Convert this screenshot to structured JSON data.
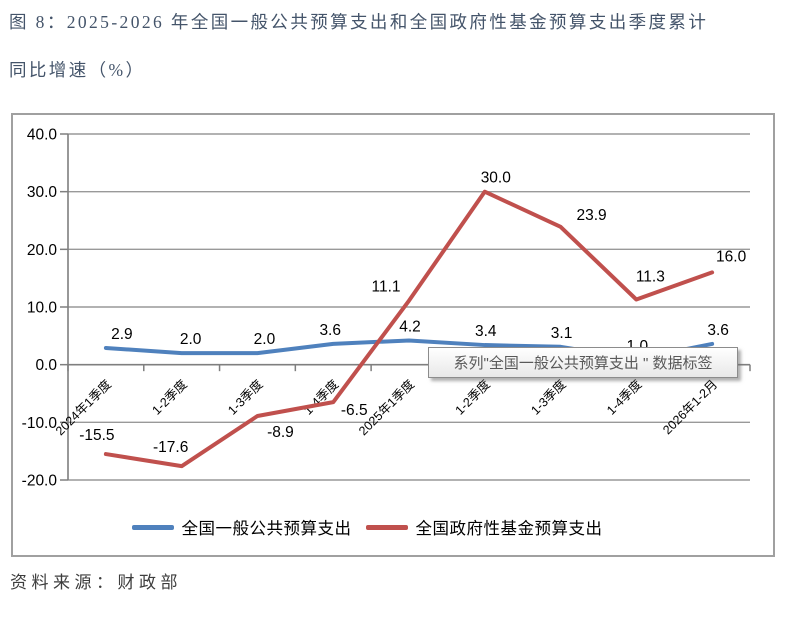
{
  "title": {
    "line1": "图 8：2025-2026 年全国一般公共预算支出和全国政府性基金预算支出季度累计",
    "line2": "同比增速（%）"
  },
  "tooltip": {
    "text": "系列\"全国一般公共预算支出 \" 数据标签"
  },
  "source_note": "资料来源：财政部",
  "colors": {
    "series_blue": "#4F81BD",
    "series_red": "#C0504D",
    "gridline": "#999999",
    "axis": "#7f7f7f",
    "title_text": "#44546A"
  },
  "chart_data": {
    "type": "line",
    "categories": [
      "2024年1季度",
      "1-2季度",
      "1-3季度",
      "1-4季度",
      "2025年1季度",
      "1-2季度",
      "1-3季度",
      "1-4季度",
      "2026年1-2月"
    ],
    "series": [
      {
        "name": "全国一般公共预算支出",
        "color": "#4F81BD",
        "values": [
          2.9,
          2.0,
          2.0,
          3.6,
          4.2,
          3.4,
          3.1,
          1.0,
          3.6
        ]
      },
      {
        "name": "全国政府性基金预算支出",
        "color": "#C0504D",
        "values": [
          -15.5,
          -17.6,
          -8.9,
          -6.5,
          11.1,
          30.0,
          23.9,
          11.3,
          16.0
        ]
      }
    ],
    "ylim": [
      -20,
      40
    ],
    "ytick_step": 10,
    "ytick_labels": [
      "40.0",
      "30.0",
      "20.0",
      "10.0",
      "0.0",
      "-10.0",
      "-20.0"
    ],
    "grid": true,
    "legend_position": "bottom",
    "data_labels": "one_decimal"
  }
}
